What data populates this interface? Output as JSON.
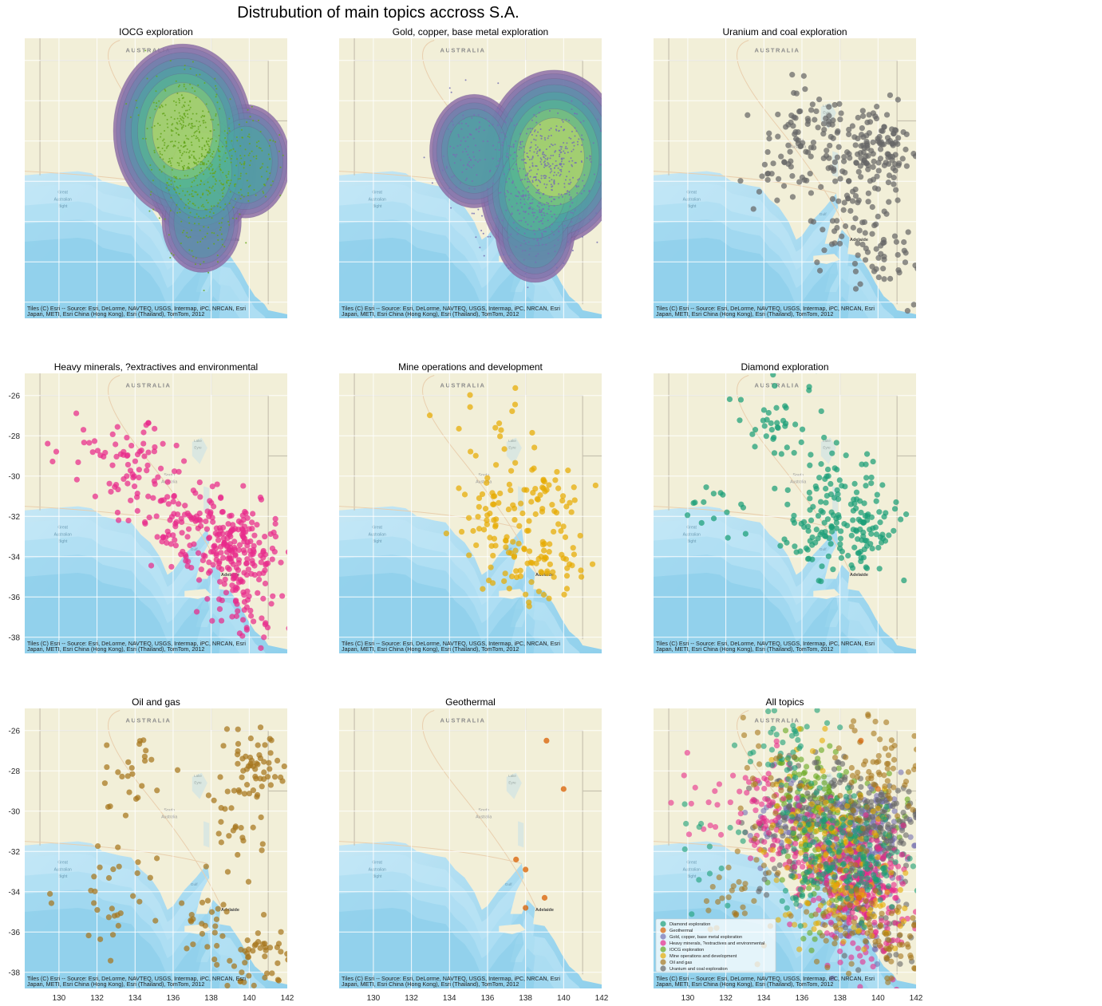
{
  "figure": {
    "suptitle": "Distrubution of main topics accross S.A.",
    "attribution_line1": "Tiles (C) Esri -- Source: Esri, DeLorme, NAVTEQ, USGS, Intermap, iPC, NRCAN, Esri",
    "attribution_line2": "Japan, METI, Esri China (Hong Kong), Esri (Thailand), TomTom, 2012",
    "basemap_labels": {
      "country": "AUSTRALIA",
      "bight": [
        "Great",
        "Australian",
        "Bight"
      ],
      "city": "Adelaide",
      "lake": [
        "Lake",
        "Eyre"
      ],
      "region": [
        "South",
        "Australia"
      ],
      "gulf": "Gulf"
    }
  },
  "chart_data": [
    {
      "type": "kde",
      "title": "IOCG exploration",
      "color": "#66a61e",
      "xlim": [
        128.2,
        142.0
      ],
      "ylim": [
        -38.8,
        -24.9
      ],
      "xlabel": "",
      "ylabel": "",
      "grid": true,
      "points_desc": "thousands of small green points, densest around lon 135-138, lat -28 to -32",
      "density_centers": [
        {
          "x": 136.5,
          "y": -29.5,
          "weight": 1.0
        },
        {
          "x": 137.5,
          "y": -31.5,
          "weight": 0.7
        },
        {
          "x": 139.8,
          "y": -31.0,
          "weight": 0.5
        },
        {
          "x": 137.5,
          "y": -34.0,
          "weight": 0.4
        }
      ]
    },
    {
      "type": "kde",
      "title": "Gold, copper, base metal exploration",
      "color": "#7570b3",
      "xlim": [
        128.2,
        142.0
      ],
      "ylim": [
        -38.8,
        -24.9
      ],
      "xlabel": "",
      "ylabel": "",
      "grid": true,
      "points_desc": "thousands of small purple points, densest around lon 138.5-140.5, lat -30 to -32",
      "density_centers": [
        {
          "x": 139.5,
          "y": -30.8,
          "weight": 1.0
        },
        {
          "x": 138.5,
          "y": -32.5,
          "weight": 0.7
        },
        {
          "x": 135.3,
          "y": -30.5,
          "weight": 0.5
        },
        {
          "x": 138.5,
          "y": -34.5,
          "weight": 0.4
        }
      ]
    },
    {
      "type": "scatter",
      "title": "Uranium and coal exploration",
      "color": "#666666",
      "xlim": [
        128.2,
        142.0
      ],
      "ylim": [
        -38.8,
        -24.9
      ],
      "xlabel": "",
      "ylabel": "",
      "grid": true,
      "clusters": [
        {
          "x": 139.8,
          "y": -30.5,
          "n": 140
        },
        {
          "x": 136.5,
          "y": -29.5,
          "n": 60
        },
        {
          "x": 135.0,
          "y": -31.5,
          "n": 40
        },
        {
          "x": 138.5,
          "y": -34.0,
          "n": 40
        },
        {
          "x": 140.2,
          "y": -35.8,
          "n": 40
        }
      ]
    },
    {
      "type": "scatter",
      "title": "Heavy minerals, ?extractives and environmental",
      "color": "#e7298a",
      "xlim": [
        128.2,
        142.0
      ],
      "ylim": [
        -38.8,
        -24.9
      ],
      "xlabel": "",
      "ylabel": "",
      "grid": true,
      "clusters": [
        {
          "x": 139.5,
          "y": -33.5,
          "n": 160
        },
        {
          "x": 136.8,
          "y": -32.5,
          "n": 90
        },
        {
          "x": 134.0,
          "y": -29.8,
          "n": 70
        },
        {
          "x": 139.8,
          "y": -36.0,
          "n": 50
        },
        {
          "x": 131.0,
          "y": -29.0,
          "n": 10
        }
      ]
    },
    {
      "type": "scatter",
      "title": "Mine operations and development",
      "color": "#e6ab02",
      "xlim": [
        128.2,
        142.0
      ],
      "ylim": [
        -38.8,
        -24.9
      ],
      "xlabel": "",
      "ylabel": "",
      "grid": true,
      "clusters": [
        {
          "x": 138.8,
          "y": -31.3,
          "n": 50
        },
        {
          "x": 139.2,
          "y": -34.5,
          "n": 50
        },
        {
          "x": 136.0,
          "y": -31.5,
          "n": 35
        },
        {
          "x": 137.0,
          "y": -34.0,
          "n": 30
        },
        {
          "x": 136.0,
          "y": -28.3,
          "n": 15
        }
      ]
    },
    {
      "type": "scatter",
      "title": "Diamond exploration",
      "color": "#1b9e77",
      "xlim": [
        128.2,
        142.0
      ],
      "ylim": [
        -38.8,
        -24.9
      ],
      "xlabel": "",
      "ylabel": "",
      "grid": true,
      "clusters": [
        {
          "x": 139.2,
          "y": -32.6,
          "n": 90
        },
        {
          "x": 134.8,
          "y": -27.0,
          "n": 40
        },
        {
          "x": 136.5,
          "y": -33.0,
          "n": 50
        },
        {
          "x": 137.5,
          "y": -30.5,
          "n": 40
        },
        {
          "x": 131.5,
          "y": -31.5,
          "n": 15
        }
      ]
    },
    {
      "type": "scatter",
      "title": "Oil and gas",
      "color": "#a6761d",
      "xlim": [
        128.2,
        142.0
      ],
      "ylim": [
        -38.8,
        -24.9
      ],
      "xlabel": "",
      "ylabel": "",
      "grid": true,
      "clusters": [
        {
          "x": 140.3,
          "y": -27.8,
          "n": 60
        },
        {
          "x": 140.5,
          "y": -37.3,
          "n": 50
        },
        {
          "x": 134.0,
          "y": -28.5,
          "n": 25
        },
        {
          "x": 132.5,
          "y": -34.5,
          "n": 30
        },
        {
          "x": 137.8,
          "y": -35.5,
          "n": 25
        },
        {
          "x": 139.0,
          "y": -31.0,
          "n": 20
        }
      ]
    },
    {
      "type": "scatter",
      "title": "Geothermal",
      "color": "#d95f02",
      "xlim": [
        128.2,
        142.0
      ],
      "ylim": [
        -38.8,
        -24.9
      ],
      "xlabel": "",
      "ylabel": "",
      "grid": true,
      "points": [
        [
          139.1,
          -26.5
        ],
        [
          140.0,
          -28.9
        ],
        [
          137.5,
          -32.4
        ],
        [
          138.0,
          -32.9
        ],
        [
          139.0,
          -34.3
        ],
        [
          138.0,
          -34.8
        ]
      ]
    },
    {
      "type": "scatter",
      "title": "All topics",
      "xlim": [
        128.2,
        142.0
      ],
      "ylim": [
        -38.8,
        -24.9
      ],
      "xlabel": "",
      "ylabel": "",
      "grid": true,
      "legend_position": "lower-left",
      "legend": [
        {
          "label": "Diamond exploration",
          "color": "#1b9e77"
        },
        {
          "label": "Geothermal",
          "color": "#d95f02"
        },
        {
          "label": "Gold, copper, base metal exploration",
          "color": "#7570b3"
        },
        {
          "label": "Heavy minerals, ?extractives and environmental",
          "color": "#e7298a"
        },
        {
          "label": "IOCG exploration",
          "color": "#66a61e"
        },
        {
          "label": "Mine operations and development",
          "color": "#e6ab02"
        },
        {
          "label": "Oil and gas",
          "color": "#a6761d"
        },
        {
          "label": "Uranium and coal exploration",
          "color": "#666666"
        }
      ]
    }
  ],
  "axes": {
    "x_ticks": [
      130,
      132,
      134,
      136,
      138,
      140,
      142
    ],
    "y_ticks": [
      -26,
      -28,
      -30,
      -32,
      -34,
      -36,
      -38
    ]
  }
}
